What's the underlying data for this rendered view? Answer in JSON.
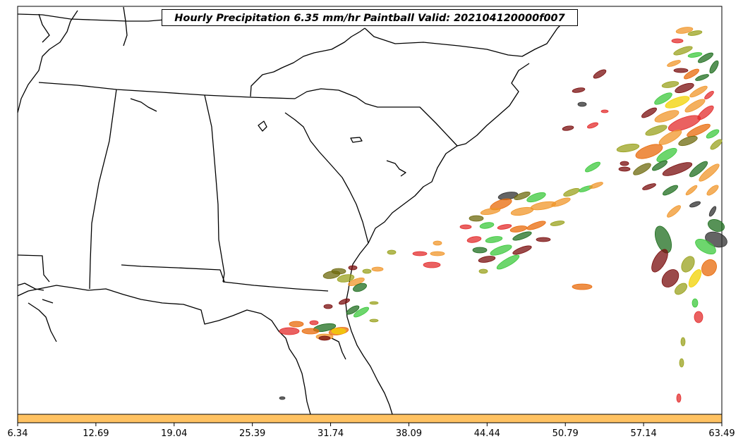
{
  "title": "Hourly Precipitation 6.35 mm/hr Paintball Valid: 202104120000f007",
  "colorbar": {
    "color": "#ffc262",
    "ticks": [
      "6.34",
      "12.69",
      "19.04",
      "25.39",
      "31.74",
      "38.09",
      "44.44",
      "50.79",
      "57.14",
      "63.49"
    ]
  },
  "map": {
    "region": "southeastern United States and western Atlantic",
    "background": "#ffffff",
    "paintball_colors": [
      "#e32c2c",
      "#3cc83c",
      "#1f6e1f",
      "#7a0e0e",
      "#f0962a",
      "#e86a0a",
      "#9aa21e",
      "#6e6a0e",
      "#f2d200",
      "#303030"
    ]
  }
}
